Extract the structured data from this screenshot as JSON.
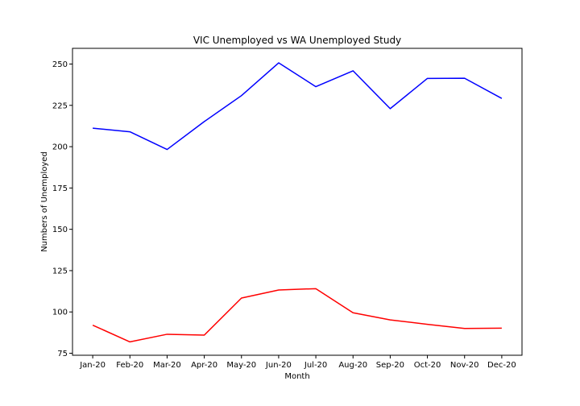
{
  "chart_data": {
    "type": "line",
    "title": "VIC Unemployed vs WA Unemployed Study",
    "xlabel": "Month",
    "ylabel": "Numbers of Unemployed",
    "categories": [
      "Jan-20",
      "Feb-20",
      "Mar-20",
      "Apr-20",
      "May-20",
      "Jun-20",
      "Jul-20",
      "Aug-20",
      "Sep-20",
      "Oct-20",
      "Nov-20",
      "Dec-20"
    ],
    "series": [
      {
        "color": "#0000ff",
        "values": [
          211.2,
          209.0,
          198.3,
          215.2,
          230.9,
          250.7,
          236.3,
          245.9,
          223.0,
          241.3,
          241.4,
          229.2
        ]
      },
      {
        "color": "#ff0000",
        "values": [
          92.0,
          81.9,
          86.5,
          86.0,
          108.4,
          113.3,
          114.1,
          99.5,
          95.2,
          92.5,
          90.0,
          90.2
        ]
      }
    ],
    "ylim": [
      73.8,
      259.5
    ],
    "yticks": [
      75,
      100,
      125,
      150,
      175,
      200,
      225,
      250
    ],
    "ytick_labels": [
      "75",
      "100",
      "125",
      "150",
      "175",
      "200",
      "225",
      "250"
    ],
    "grid": false,
    "legend": "none"
  }
}
